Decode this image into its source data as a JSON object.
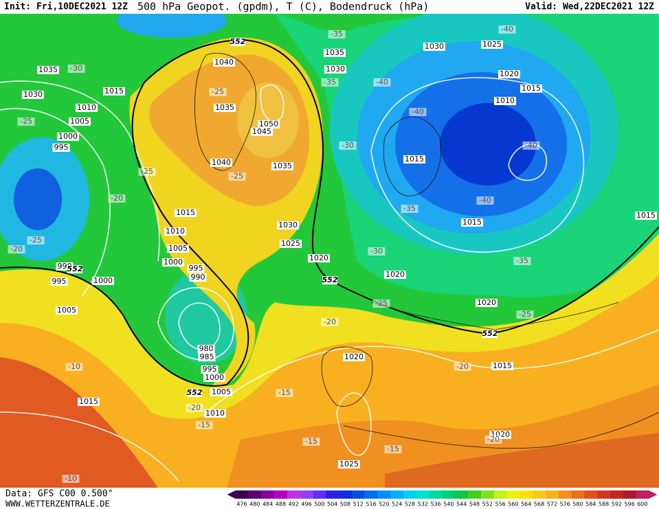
{
  "header": {
    "init": "Init: Fri,10DEC2021 12Z",
    "title": "500 hPa Geopot. (gpdm), T (C), Bodendruck (hPa)",
    "valid": "Valid: Wed,22DEC2021 12Z"
  },
  "footer": {
    "data": "Data: GFS C00 0.500°",
    "site": "WWW.WETTERZENTRALE.DE"
  },
  "colorbar": {
    "labels": [
      476,
      480,
      484,
      488,
      492,
      496,
      500,
      504,
      508,
      512,
      516,
      520,
      524,
      528,
      532,
      536,
      540,
      544,
      548,
      552,
      556,
      560,
      564,
      568,
      572,
      576,
      580,
      584,
      588,
      592,
      596,
      600
    ],
    "colors": [
      "#3c0050",
      "#5a0070",
      "#8a00a0",
      "#b000c0",
      "#c030e0",
      "#9040f0",
      "#6030f0",
      "#3020e0",
      "#1030d8",
      "#0050e0",
      "#0070f0",
      "#0090f8",
      "#00b0f8",
      "#00d0f0",
      "#00e0d0",
      "#00d8a0",
      "#00d070",
      "#10c840",
      "#40d020",
      "#80e020",
      "#c0f020",
      "#f0f010",
      "#f8e010",
      "#f8c818",
      "#f8b020",
      "#f09020",
      "#e87020",
      "#e05020",
      "#d03820",
      "#c02820",
      "#b01830",
      "#c02060"
    ]
  },
  "map_labels": [
    "1035",
    "-30",
    "1030",
    "1015",
    "1010",
    "1005",
    "-25",
    "1000",
    "995",
    "-25",
    "-20",
    "1015",
    "1010",
    "1005",
    "1000",
    "995",
    "990",
    "-25",
    "-20",
    "990",
    "995",
    "1000",
    "1005",
    "980",
    "985",
    "995",
    "1000",
    "1005",
    "1010",
    "-15",
    "-20",
    "-10",
    "1015",
    "-10",
    "1040",
    "-25",
    "1035",
    "1050",
    "1045",
    "1040",
    "1035",
    "-25",
    "1030",
    "1025",
    "1020",
    "1035",
    "1030",
    "-35",
    "-35",
    "-30",
    "1030",
    "1025",
    "1020",
    "1015",
    "1010",
    "-40",
    "-40",
    "-40",
    "-40",
    "1015",
    "-35",
    "-40",
    "1015",
    "-30",
    "1020",
    "-35",
    "-25",
    "1020",
    "-25",
    "-20",
    "1020",
    "-20",
    "1015",
    "-15",
    "-15",
    "-15",
    "1025",
    "1020",
    "-20",
    "1015"
  ],
  "contour_552_labels": [
    "552",
    "552",
    "552",
    "552",
    "552"
  ]
}
